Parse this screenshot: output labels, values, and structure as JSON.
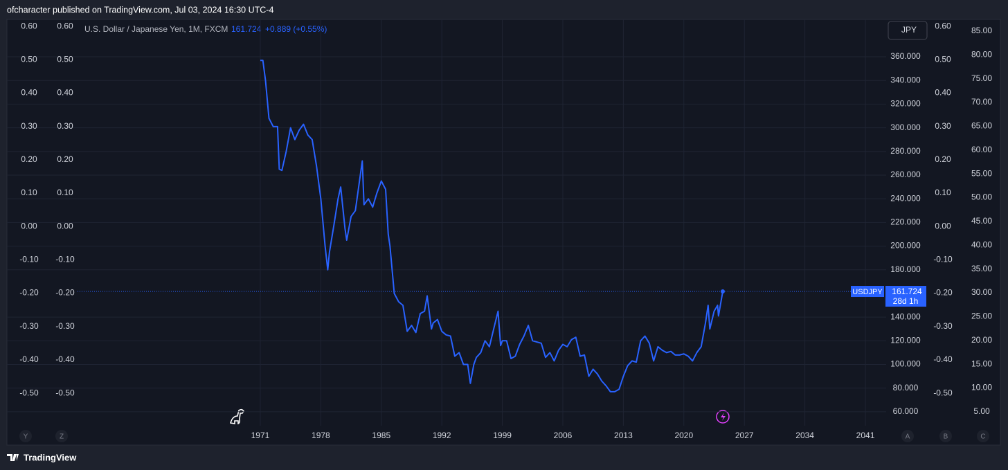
{
  "header": {
    "published": "ofcharacter published on TradingView.com, Jul 03, 2024 16:30 UTC-4"
  },
  "footer": {
    "brand": "TradingView"
  },
  "chart_data": {
    "type": "line",
    "title": "U.S. Dollar / Japanese Yen, 1M, FXCM",
    "change": "+0.889 (+0.55%)",
    "currency": "JPY",
    "countdown": "28d 1h",
    "axis_buttons": [
      "Y",
      "Z",
      "A",
      "B",
      "C"
    ],
    "grid": true,
    "x": [
      1971.0,
      1971.3,
      1971.6,
      1972.0,
      1972.5,
      1973.0,
      1973.2,
      1973.5,
      1974.0,
      1974.5,
      1975.0,
      1975.5,
      1976.0,
      1976.5,
      1977.0,
      1977.5,
      1978.0,
      1978.5,
      1978.8,
      1979.0,
      1979.5,
      1980.0,
      1980.3,
      1980.8,
      1981.0,
      1981.5,
      1982.0,
      1982.8,
      1983.0,
      1983.5,
      1984.0,
      1984.5,
      1985.0,
      1985.5,
      1985.8,
      1986.0,
      1986.5,
      1987.0,
      1987.5,
      1988.0,
      1988.5,
      1989.0,
      1989.5,
      1990.0,
      1990.3,
      1990.8,
      1991.0,
      1991.5,
      1992.0,
      1992.5,
      1993.0,
      1993.5,
      1994.0,
      1994.5,
      1995.0,
      1995.3,
      1995.7,
      1996.0,
      1996.5,
      1997.0,
      1997.5,
      1998.0,
      1998.5,
      1998.8,
      1999.0,
      1999.5,
      2000.0,
      2000.5,
      2001.0,
      2001.5,
      2002.0,
      2002.5,
      2003.0,
      2003.5,
      2004.0,
      2004.5,
      2005.0,
      2005.5,
      2006.0,
      2006.5,
      2007.0,
      2007.5,
      2008.0,
      2008.5,
      2009.0,
      2009.5,
      2010.0,
      2010.5,
      2011.0,
      2011.5,
      2012.0,
      2012.5,
      2013.0,
      2013.5,
      2014.0,
      2014.5,
      2015.0,
      2015.5,
      2016.0,
      2016.5,
      2017.0,
      2017.5,
      2018.0,
      2018.5,
      2019.0,
      2019.5,
      2020.0,
      2020.5,
      2021.0,
      2021.5,
      2022.0,
      2022.5,
      2022.8,
      2023.0,
      2023.5,
      2023.9,
      2024.0,
      2024.5
    ],
    "series": [
      {
        "name": "USDJPY",
        "color": "#2962ff",
        "values": [
          357,
          357,
          340,
          308,
          301,
          301,
          265,
          264,
          280,
          300,
          290,
          298,
          303,
          294,
          290,
          268,
          240,
          200,
          180,
          195,
          217,
          240,
          250,
          215,
          205,
          225,
          230,
          272,
          235,
          240,
          233,
          245,
          255,
          248,
          210,
          200,
          160,
          153,
          150,
          128,
          133,
          127,
          143,
          145,
          158,
          130,
          135,
          138,
          128,
          125,
          124,
          107,
          110,
          100,
          100,
          84,
          100,
          106,
          110,
          120,
          115,
          130,
          145,
          116,
          120,
          120,
          105,
          107,
          117,
          124,
          133,
          120,
          119,
          118,
          106,
          110,
          103,
          112,
          117,
          115,
          121,
          123,
          107,
          108,
          90,
          96,
          92,
          86,
          82,
          77,
          77,
          79,
          90,
          99,
          103,
          102,
          120,
          124,
          118,
          103,
          115,
          112,
          110,
          111,
          108,
          108,
          109,
          107,
          103,
          110,
          115,
          135,
          150,
          130,
          145,
          150,
          141,
          161.724
        ]
      }
    ],
    "xlim": [
      1949.86,
      2043.4
    ],
    "xticks": [
      1971,
      1978,
      1985,
      1992,
      1999,
      2006,
      2013,
      2020,
      2027,
      2034,
      2041
    ],
    "ylim": [
      50.6,
      391.6
    ],
    "yticks": [
      {
        "value": 360,
        "label": "360.000"
      },
      {
        "value": 340,
        "label": "340.000"
      },
      {
        "value": 320,
        "label": "320.000"
      },
      {
        "value": 300,
        "label": "300.000"
      },
      {
        "value": 280,
        "label": "280.000"
      },
      {
        "value": 260,
        "label": "260.000"
      },
      {
        "value": 240,
        "label": "240.000"
      },
      {
        "value": 220,
        "label": "220.000"
      },
      {
        "value": 200,
        "label": "200.000"
      },
      {
        "value": 180,
        "label": "180.000"
      },
      {
        "value": 140,
        "label": "140.000"
      },
      {
        "value": 120,
        "label": "120.000"
      },
      {
        "value": 100,
        "label": "100.000"
      },
      {
        "value": 80,
        "label": "80.000"
      },
      {
        "value": 60,
        "label": "60.000"
      }
    ],
    "y2lim": [
      2.65,
      87.47
    ],
    "y2ticks": [
      {
        "value": 85,
        "label": "85.00"
      },
      {
        "value": 80,
        "label": "80.00"
      },
      {
        "value": 75,
        "label": "75.00"
      },
      {
        "value": 70,
        "label": "70.00"
      },
      {
        "value": 65,
        "label": "65.00"
      },
      {
        "value": 60,
        "label": "60.00"
      },
      {
        "value": 55,
        "label": "55.00"
      },
      {
        "value": 50,
        "label": "50.00"
      },
      {
        "value": 45,
        "label": "45.00"
      },
      {
        "value": 40,
        "label": "40.00"
      },
      {
        "value": 35,
        "label": "35.00"
      },
      {
        "value": 30,
        "label": "30.00"
      },
      {
        "value": 25,
        "label": "25.00"
      },
      {
        "value": 20,
        "label": "20.00"
      },
      {
        "value": 15,
        "label": "15.00"
      },
      {
        "value": 10,
        "label": "10.00"
      },
      {
        "value": 5,
        "label": "5.00"
      }
    ],
    "y3lim": [
      -0.589,
      0.621
    ],
    "y3ticks": [
      {
        "value": 0.6,
        "label": "0.60"
      },
      {
        "value": 0.5,
        "label": "0.50"
      },
      {
        "value": 0.4,
        "label": "0.40"
      },
      {
        "value": 0.3,
        "label": "0.30"
      },
      {
        "value": 0.2,
        "label": "0.20"
      },
      {
        "value": 0.1,
        "label": "0.10"
      },
      {
        "value": 0,
        "label": "0.00"
      },
      {
        "value": -0.1,
        "label": "-0.10"
      },
      {
        "value": -0.2,
        "label": "-0.20"
      },
      {
        "value": -0.3,
        "label": "-0.30"
      },
      {
        "value": -0.4,
        "label": "-0.40"
      },
      {
        "value": -0.5,
        "label": "-0.50"
      }
    ]
  }
}
